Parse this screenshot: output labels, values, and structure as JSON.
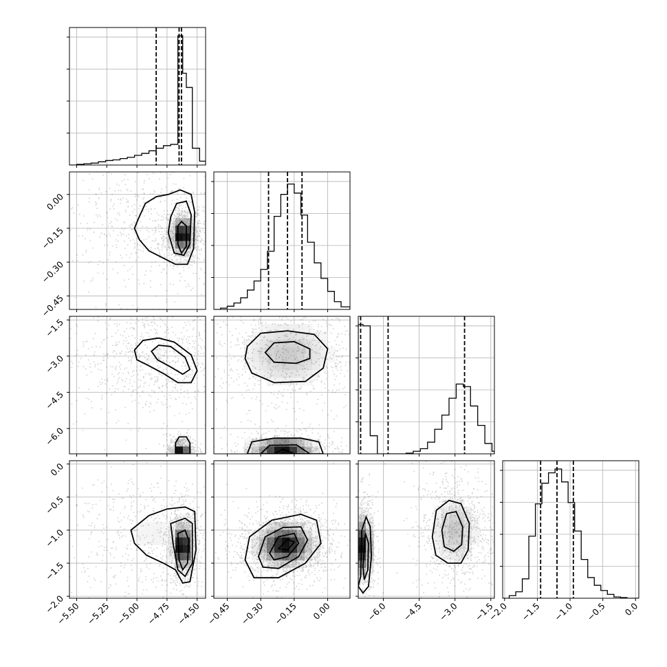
{
  "chart_data": {
    "type": "corner",
    "description_free": true,
    "parameters": [
      {
        "range": [
          -5.56,
          -4.43
        ],
        "ticks": [
          -5.5,
          -5.25,
          -5.0,
          -4.75,
          -4.5
        ],
        "tick_labels": [
          "−5.50",
          "−5.25",
          "−5.00",
          "−4.75",
          "−4.50"
        ]
      },
      {
        "range": [
          -0.51,
          0.1
        ],
        "ticks": [
          -0.45,
          -0.3,
          -0.15,
          0.0
        ],
        "tick_labels": [
          "−0.45",
          "−0.30",
          "−0.15",
          "0.00"
        ]
      },
      {
        "range": [
          -7.05,
          -1.35
        ],
        "ticks": [
          -6.0,
          -4.5,
          -3.0,
          -1.5
        ],
        "tick_labels": [
          "−6.0",
          "−4.5",
          "−3.0",
          "−1.5"
        ]
      },
      {
        "range": [
          -2.03,
          0.05
        ],
        "ticks": [
          -2.0,
          -1.5,
          -1.0,
          -0.5,
          0.0
        ],
        "tick_labels": [
          "−2.0",
          "−1.5",
          "−1.0",
          "−0.5",
          "0.0"
        ]
      }
    ],
    "grid": true,
    "diagonal": [
      {
        "bin_edges": [
          -5.56,
          -5.5,
          -5.44,
          -5.38,
          -5.32,
          -5.26,
          -5.2,
          -5.14,
          -5.08,
          -5.02,
          -4.96,
          -4.9,
          -4.84,
          -4.78,
          -4.72,
          -4.66,
          -4.62,
          -4.59,
          -4.54,
          -4.48,
          -4.43
        ],
        "counts": [
          0,
          0.005,
          0.01,
          0.015,
          0.025,
          0.035,
          0.04,
          0.05,
          0.06,
          0.075,
          0.09,
          0.11,
          0.13,
          0.15,
          0.16,
          1.0,
          0.71,
          0.6,
          0.13,
          0.03
        ],
        "quantiles": [
          -4.84,
          -4.65,
          -4.63
        ]
      },
      {
        "bin_edges": [
          -0.51,
          -0.48,
          -0.45,
          -0.42,
          -0.39,
          -0.36,
          -0.33,
          -0.3,
          -0.27,
          -0.24,
          -0.21,
          -0.18,
          -0.15,
          -0.12,
          -0.09,
          -0.06,
          -0.03,
          0.0,
          0.03,
          0.06,
          0.1
        ],
        "counts": [
          0,
          0.01,
          0.025,
          0.05,
          0.09,
          0.15,
          0.22,
          0.31,
          0.45,
          0.72,
          0.89,
          0.97,
          0.9,
          0.73,
          0.52,
          0.36,
          0.24,
          0.14,
          0.06,
          0.02
        ],
        "quantiles": [
          -0.265,
          -0.18,
          -0.115
        ]
      },
      {
        "bin_edges": [
          -7.05,
          -6.85,
          -6.55,
          -6.25,
          -5.95,
          -5.65,
          -5.35,
          -5.05,
          -4.75,
          -4.45,
          -4.15,
          -3.85,
          -3.55,
          -3.25,
          -2.95,
          -2.65,
          -2.35,
          -2.05,
          -1.75,
          -1.45,
          -1.35
        ],
        "counts": [
          1.0,
          0.99,
          0.14,
          0.0,
          0.0,
          0.0,
          0.0,
          0.005,
          0.02,
          0.04,
          0.09,
          0.19,
          0.3,
          0.43,
          0.54,
          0.52,
          0.37,
          0.22,
          0.08,
          0.02
        ],
        "quantiles": [
          -6.95,
          -5.8,
          -2.6
        ]
      },
      {
        "bin_edges": [
          -2.03,
          -1.93,
          -1.83,
          -1.73,
          -1.63,
          -1.53,
          -1.43,
          -1.33,
          -1.23,
          -1.13,
          -1.03,
          -0.93,
          -0.83,
          -0.73,
          -0.63,
          -0.53,
          -0.43,
          -0.33,
          -0.23,
          -0.13,
          0.05
        ],
        "counts": [
          0,
          0.02,
          0.05,
          0.15,
          0.48,
          0.73,
          0.89,
          0.97,
          1.0,
          0.9,
          0.74,
          0.52,
          0.3,
          0.16,
          0.1,
          0.06,
          0.03,
          0.01,
          0.005,
          0
        ],
        "quantiles": [
          -1.45,
          -1.2,
          -0.95
        ]
      }
    ],
    "pairs": [
      {
        "row": 1,
        "col": 0,
        "modes": [
          {
            "x": -4.62,
            "y": -0.18,
            "sx": 0.05,
            "sy": 0.04,
            "w": 0.55
          },
          {
            "x": -4.9,
            "y": -0.15,
            "sx": 0.25,
            "sy": 0.1,
            "w": 0.45
          }
        ],
        "contours": [
          [
            [
              -4.99,
              -0.11
            ],
            [
              -4.93,
              -0.04
            ],
            [
              -4.84,
              -0.01
            ],
            [
              -4.74,
              -0.0
            ],
            [
              -4.64,
              0.02
            ],
            [
              -4.55,
              0.0
            ],
            [
              -4.52,
              -0.08
            ],
            [
              -4.53,
              -0.24
            ],
            [
              -4.58,
              -0.31
            ],
            [
              -4.68,
              -0.31
            ],
            [
              -4.79,
              -0.28
            ],
            [
              -4.9,
              -0.25
            ],
            [
              -4.98,
              -0.2
            ],
            [
              -5.02,
              -0.15
            ]
          ],
          [
            [
              -4.72,
              -0.1
            ],
            [
              -4.67,
              -0.04
            ],
            [
              -4.59,
              -0.03
            ],
            [
              -4.55,
              -0.09
            ],
            [
              -4.56,
              -0.22
            ],
            [
              -4.61,
              -0.27
            ],
            [
              -4.69,
              -0.26
            ],
            [
              -4.74,
              -0.17
            ]
          ],
          [
            [
              -4.66,
              -0.14
            ],
            [
              -4.63,
              -0.12
            ],
            [
              -4.59,
              -0.14
            ],
            [
              -4.59,
              -0.23
            ],
            [
              -4.63,
              -0.26
            ],
            [
              -4.66,
              -0.22
            ]
          ]
        ]
      },
      {
        "row": 2,
        "col": 0,
        "modes": [
          {
            "x": -4.85,
            "y": -3.0,
            "sx": 0.25,
            "sy": 0.8,
            "w": 0.65
          },
          {
            "x": -4.63,
            "y": -6.9,
            "sx": 0.04,
            "sy": 0.2,
            "w": 0.35
          }
        ],
        "contours": [
          [
            [
              -5.02,
              -2.75
            ],
            [
              -4.95,
              -2.35
            ],
            [
              -4.82,
              -2.25
            ],
            [
              -4.69,
              -2.42
            ],
            [
              -4.55,
              -2.95
            ],
            [
              -4.5,
              -3.6
            ],
            [
              -4.55,
              -4.1
            ],
            [
              -4.66,
              -4.1
            ],
            [
              -4.77,
              -3.75
            ],
            [
              -4.9,
              -3.4
            ],
            [
              -5.0,
              -3.15
            ]
          ],
          [
            [
              -4.88,
              -2.8
            ],
            [
              -4.82,
              -2.55
            ],
            [
              -4.72,
              -2.6
            ],
            [
              -4.6,
              -3.05
            ],
            [
              -4.56,
              -3.55
            ],
            [
              -4.62,
              -3.75
            ],
            [
              -4.72,
              -3.45
            ],
            [
              -4.83,
              -3.15
            ]
          ],
          [
            [
              -4.68,
              -6.6
            ],
            [
              -4.65,
              -6.35
            ],
            [
              -4.59,
              -6.35
            ],
            [
              -4.56,
              -6.6
            ],
            [
              -4.56,
              -7.05
            ],
            [
              -4.68,
              -7.05
            ]
          ]
        ]
      },
      {
        "row": 2,
        "col": 1,
        "modes": [
          {
            "x": -0.18,
            "y": -2.9,
            "sx": 0.12,
            "sy": 0.8,
            "w": 0.6
          },
          {
            "x": -0.2,
            "y": -6.85,
            "sx": 0.08,
            "sy": 0.25,
            "w": 0.4
          }
        ],
        "contours": [
          [
            [
              -0.36,
              -2.6
            ],
            [
              -0.3,
              -2.05
            ],
            [
              -0.18,
              -1.95
            ],
            [
              -0.06,
              -2.1
            ],
            [
              0.0,
              -2.7
            ],
            [
              -0.02,
              -3.5
            ],
            [
              -0.1,
              -4.05
            ],
            [
              -0.24,
              -4.1
            ],
            [
              -0.34,
              -3.7
            ],
            [
              -0.37,
              -3.1
            ]
          ],
          [
            [
              -0.28,
              -2.85
            ],
            [
              -0.24,
              -2.45
            ],
            [
              -0.15,
              -2.4
            ],
            [
              -0.08,
              -2.7
            ],
            [
              -0.08,
              -3.1
            ],
            [
              -0.14,
              -3.3
            ],
            [
              -0.24,
              -3.25
            ]
          ],
          [
            [
              -0.36,
              -7.05
            ],
            [
              -0.34,
              -6.55
            ],
            [
              -0.24,
              -6.4
            ],
            [
              -0.12,
              -6.4
            ],
            [
              -0.04,
              -6.55
            ],
            [
              -0.02,
              -7.05
            ]
          ],
          [
            [
              -0.3,
              -7.05
            ],
            [
              -0.26,
              -6.7
            ],
            [
              -0.14,
              -6.68
            ],
            [
              -0.08,
              -7.05
            ]
          ],
          [
            [
              -0.24,
              -7.05
            ],
            [
              -0.2,
              -6.85
            ],
            [
              -0.15,
              -7.05
            ]
          ]
        ]
      },
      {
        "row": 3,
        "col": 0,
        "modes": [
          {
            "x": -4.62,
            "y": -1.25,
            "sx": 0.04,
            "sy": 0.18,
            "w": 0.55
          },
          {
            "x": -4.85,
            "y": -1.05,
            "sx": 0.25,
            "sy": 0.3,
            "w": 0.45
          }
        ],
        "contours": [
          [
            [
              -5.05,
              -1.0
            ],
            [
              -4.9,
              -0.78
            ],
            [
              -4.75,
              -0.68
            ],
            [
              -4.6,
              -0.65
            ],
            [
              -4.52,
              -0.72
            ],
            [
              -4.51,
              -1.3
            ],
            [
              -4.56,
              -1.78
            ],
            [
              -4.62,
              -1.8
            ],
            [
              -4.68,
              -1.6
            ],
            [
              -4.78,
              -1.5
            ],
            [
              -4.92,
              -1.38
            ],
            [
              -5.02,
              -1.2
            ]
          ],
          [
            [
              -4.72,
              -0.9
            ],
            [
              -4.6,
              -0.82
            ],
            [
              -4.54,
              -0.9
            ],
            [
              -4.54,
              -1.5
            ],
            [
              -4.6,
              -1.7
            ],
            [
              -4.66,
              -1.6
            ],
            [
              -4.7,
              -1.2
            ]
          ],
          [
            [
              -4.66,
              -1.05
            ],
            [
              -4.6,
              -1.0
            ],
            [
              -4.57,
              -1.15
            ],
            [
              -4.58,
              -1.5
            ],
            [
              -4.62,
              -1.6
            ],
            [
              -4.65,
              -1.45
            ]
          ]
        ]
      },
      {
        "row": 3,
        "col": 1,
        "modes": [
          {
            "x": -0.19,
            "y": -1.22,
            "sx": 0.07,
            "sy": 0.18,
            "w": 1.0
          }
        ],
        "contours": [
          [
            [
              -0.37,
              -1.45
            ],
            [
              -0.35,
              -1.1
            ],
            [
              -0.25,
              -0.85
            ],
            [
              -0.12,
              -0.76
            ],
            [
              -0.05,
              -0.85
            ],
            [
              -0.03,
              -1.2
            ],
            [
              -0.1,
              -1.5
            ],
            [
              -0.22,
              -1.72
            ],
            [
              -0.33,
              -1.72
            ]
          ],
          [
            [
              -0.31,
              -1.4
            ],
            [
              -0.28,
              -1.1
            ],
            [
              -0.2,
              -0.96
            ],
            [
              -0.12,
              -0.95
            ],
            [
              -0.09,
              -1.15
            ],
            [
              -0.13,
              -1.4
            ],
            [
              -0.22,
              -1.58
            ],
            [
              -0.29,
              -1.56
            ]
          ],
          [
            [
              -0.26,
              -1.35
            ],
            [
              -0.22,
              -1.1
            ],
            [
              -0.15,
              -1.05
            ],
            [
              -0.13,
              -1.2
            ],
            [
              -0.18,
              -1.4
            ],
            [
              -0.24,
              -1.45
            ]
          ],
          [
            [
              -0.22,
              -1.28
            ],
            [
              -0.18,
              -1.14
            ],
            [
              -0.15,
              -1.18
            ],
            [
              -0.18,
              -1.3
            ]
          ]
        ]
      },
      {
        "row": 3,
        "col": 2,
        "modes": [
          {
            "x": -3.0,
            "y": -1.0,
            "sx": 0.55,
            "sy": 0.3,
            "w": 0.55
          },
          {
            "x": -6.8,
            "y": -1.25,
            "sx": 0.15,
            "sy": 0.25,
            "w": 0.45
          }
        ],
        "contours": [
          [
            [
              -3.95,
              -1.1
            ],
            [
              -3.78,
              -0.7
            ],
            [
              -3.25,
              -0.55
            ],
            [
              -2.75,
              -0.6
            ],
            [
              -2.4,
              -0.9
            ],
            [
              -2.45,
              -1.3
            ],
            [
              -2.75,
              -1.5
            ],
            [
              -3.3,
              -1.5
            ],
            [
              -3.8,
              -1.38
            ]
          ],
          [
            [
              -3.55,
              -1.0
            ],
            [
              -3.35,
              -0.75
            ],
            [
              -2.95,
              -0.72
            ],
            [
              -2.68,
              -0.95
            ],
            [
              -2.72,
              -1.22
            ],
            [
              -3.05,
              -1.32
            ],
            [
              -3.45,
              -1.25
            ]
          ],
          [
            [
              -6.95,
              -1.7
            ],
            [
              -6.9,
              -1.0
            ],
            [
              -6.72,
              -0.8
            ],
            [
              -6.55,
              -0.95
            ],
            [
              -6.5,
              -1.4
            ],
            [
              -6.62,
              -1.85
            ],
            [
              -6.85,
              -1.95
            ],
            [
              -7.05,
              -1.85
            ]
          ],
          [
            [
              -6.85,
              -1.55
            ],
            [
              -6.75,
              -1.05
            ],
            [
              -6.62,
              -1.2
            ],
            [
              -6.65,
              -1.6
            ],
            [
              -6.8,
              -1.75
            ]
          ]
        ]
      }
    ]
  }
}
